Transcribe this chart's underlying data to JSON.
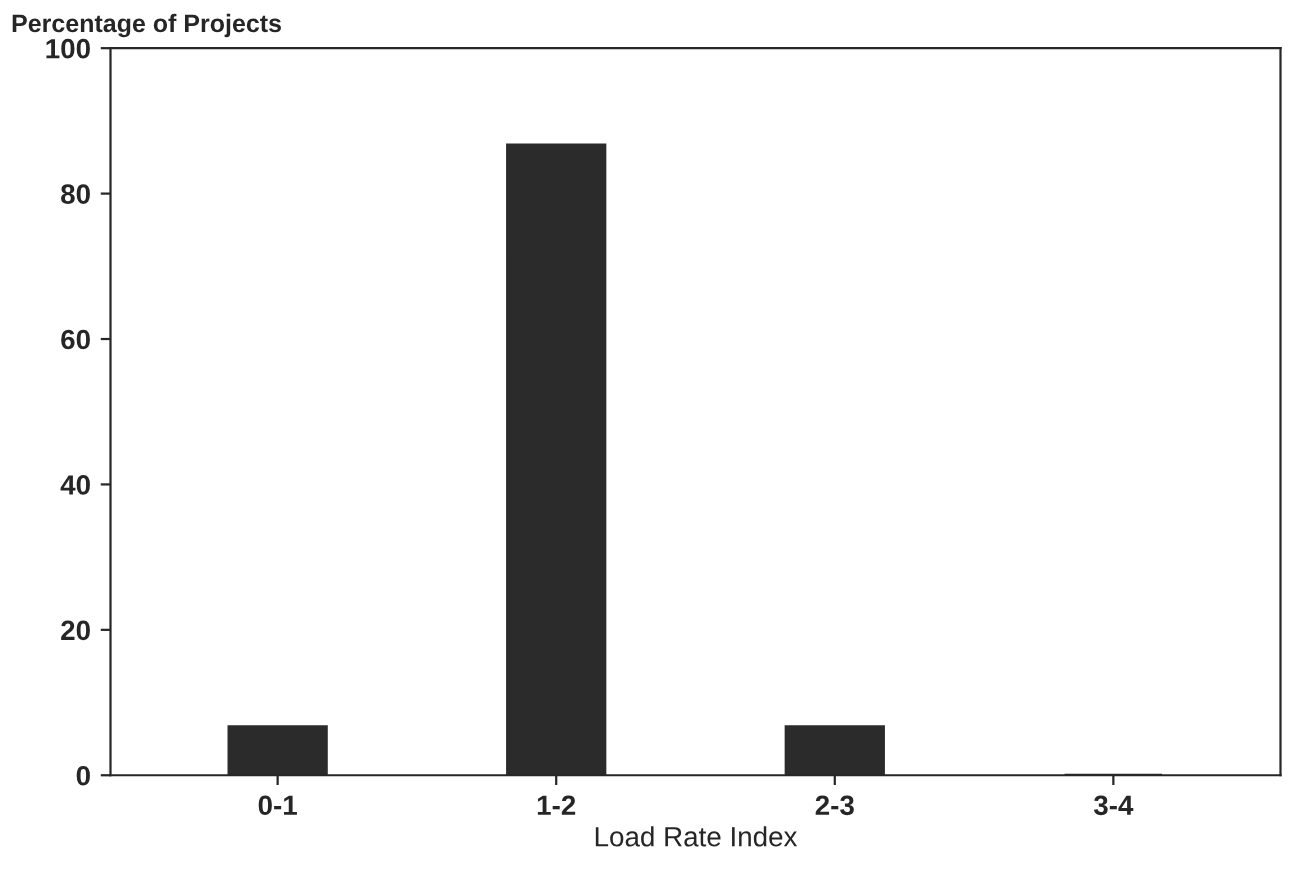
{
  "chart_data": {
    "type": "bar",
    "ylabel": "Percentage of Projects",
    "xlabel": "Load Rate Index",
    "categories": [
      "0-1",
      "1-2",
      "2-3",
      "3-4"
    ],
    "values": [
      6.7,
      86.7,
      6.7,
      0
    ],
    "color": "#2b2b2b",
    "ylim": [
      0,
      100
    ],
    "yticks": [
      0,
      20,
      40,
      60,
      80,
      100
    ],
    "grid": false,
    "legend": false
  }
}
